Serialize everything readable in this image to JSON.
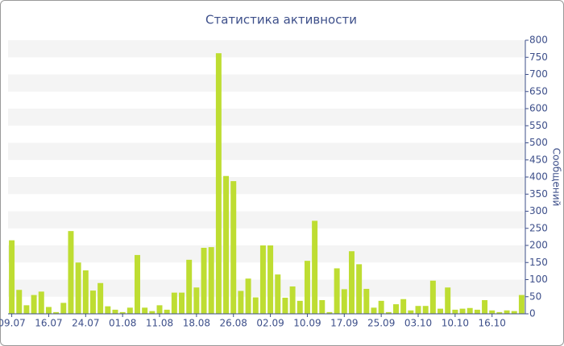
{
  "chart_data": {
    "type": "bar",
    "title": "Статистика активности",
    "y_label": "Сообщений",
    "categories": [
      "09.07",
      null,
      null,
      null,
      null,
      "16.07",
      null,
      null,
      null,
      null,
      "24.07",
      null,
      null,
      null,
      null,
      "01.08",
      null,
      null,
      null,
      null,
      "11.08",
      null,
      null,
      null,
      null,
      "18.08",
      null,
      null,
      null,
      null,
      "26.08",
      null,
      null,
      null,
      null,
      "02.09",
      null,
      null,
      null,
      null,
      "10.09",
      null,
      null,
      null,
      null,
      "17.09",
      null,
      null,
      null,
      null,
      "25.09",
      null,
      null,
      null,
      null,
      "03.10",
      null,
      null,
      null,
      null,
      "10.10",
      null,
      null,
      null,
      null,
      "16.10",
      null,
      null,
      null,
      null
    ],
    "values": [
      215,
      70,
      25,
      55,
      65,
      20,
      5,
      32,
      242,
      150,
      127,
      68,
      90,
      22,
      12,
      5,
      18,
      172,
      18,
      8,
      25,
      12,
      62,
      62,
      158,
      77,
      193,
      195,
      762,
      403,
      388,
      67,
      103,
      48,
      200,
      200,
      115,
      47,
      80,
      38,
      155,
      272,
      40,
      5,
      133,
      72,
      183,
      145,
      73,
      18,
      38,
      5,
      28,
      43,
      10,
      23,
      23,
      97,
      15,
      77,
      12,
      15,
      17,
      12,
      40,
      10,
      5,
      10,
      8,
      55
    ],
    "color": "#bedd32",
    "ylim": [
      0,
      800
    ],
    "yticks": [
      0,
      50,
      100,
      150,
      200,
      250,
      300,
      350,
      400,
      450,
      500,
      550,
      600,
      650,
      700,
      750,
      800
    ],
    "grid": true,
    "y_axis_side": "right"
  }
}
